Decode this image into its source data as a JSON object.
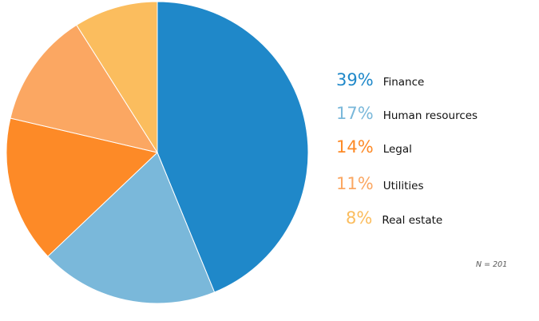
{
  "chart_data": {
    "type": "pie",
    "slices": [
      {
        "label": "Finance",
        "percent_label": "39%",
        "value": 39,
        "color": "#1f88c9"
      },
      {
        "label": "Human resources",
        "percent_label": "17%",
        "value": 17,
        "color": "#7ab8da"
      },
      {
        "label": "Legal",
        "percent_label": "14%",
        "value": 14,
        "color": "#fd8a27"
      },
      {
        "label": "Utilities",
        "percent_label": "11%",
        "value": 11,
        "color": "#fba762"
      },
      {
        "label": "Real estate",
        "percent_label": "8%",
        "value": 8,
        "color": "#fbbd5e"
      }
    ],
    "start_angle": "12 o'clock",
    "direction": "clockwise",
    "legend_placement": "right",
    "note": "N = 201"
  }
}
